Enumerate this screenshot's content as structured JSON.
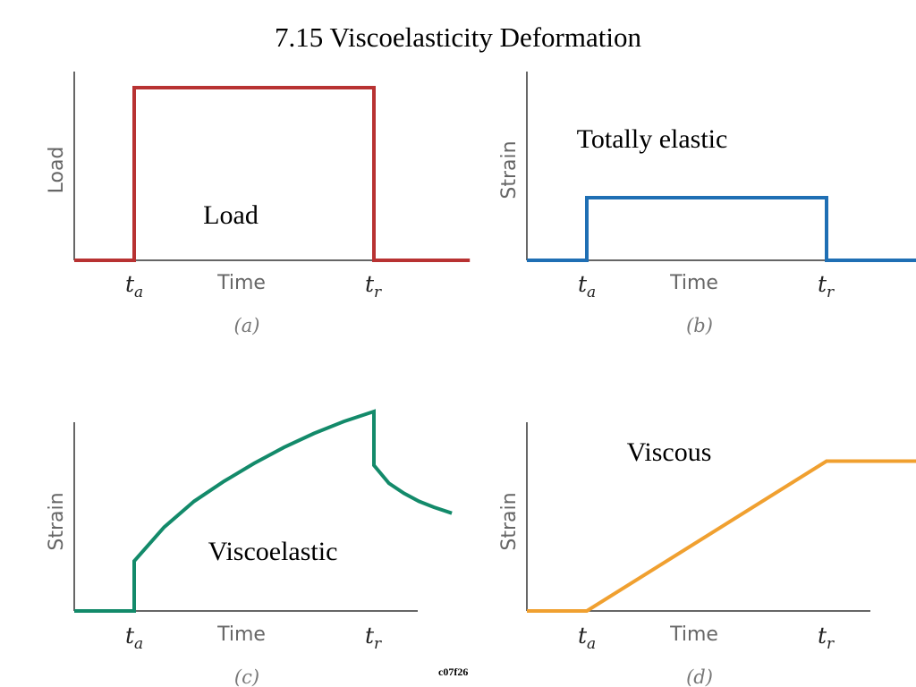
{
  "title": "7.15  Viscoelasticity Deformation",
  "caption": "c07f26",
  "chart_data": [
    {
      "type": "line",
      "panel_label": "(a)",
      "ylabel": "Load",
      "xlabel": "Time",
      "ticks": [
        {
          "main": "t",
          "sub": "a"
        },
        {
          "main": "t",
          "sub": "r"
        }
      ],
      "annotation": "Load",
      "color": "#b83232",
      "series": [
        {
          "x": [
            0,
            1,
            1,
            5,
            5,
            6.6
          ],
          "y": [
            0,
            0,
            1,
            1,
            0,
            0
          ]
        }
      ]
    },
    {
      "type": "line",
      "panel_label": "(b)",
      "ylabel": "Strain",
      "xlabel": "Time",
      "ticks": [
        {
          "main": "t",
          "sub": "a"
        },
        {
          "main": "t",
          "sub": "r"
        }
      ],
      "annotation": "Totally elastic",
      "color": "#1f6fb4",
      "series": [
        {
          "x": [
            0,
            1,
            1,
            5,
            5,
            6.6
          ],
          "y": [
            0,
            0,
            0.35,
            0.35,
            0,
            0
          ]
        }
      ]
    },
    {
      "type": "line",
      "panel_label": "(c)",
      "ylabel": "Strain",
      "xlabel": "Time",
      "ticks": [
        {
          "main": "t",
          "sub": "a"
        },
        {
          "main": "t",
          "sub": "r"
        }
      ],
      "annotation": "Viscoelastic",
      "color": "#138a6a",
      "series": [
        {
          "x": [
            0,
            1,
            1,
            1.5,
            2,
            2.5,
            3,
            3.5,
            4,
            4.5,
            5,
            5,
            5.25,
            5.5,
            5.75,
            6,
            6.3
          ],
          "y": [
            0,
            0,
            0.25,
            0.42,
            0.55,
            0.65,
            0.74,
            0.82,
            0.89,
            0.95,
            1.0,
            0.73,
            0.64,
            0.59,
            0.55,
            0.52,
            0.49
          ]
        }
      ]
    },
    {
      "type": "line",
      "panel_label": "(d)",
      "ylabel": "Strain",
      "xlabel": "Time",
      "ticks": [
        {
          "main": "t",
          "sub": "a"
        },
        {
          "main": "t",
          "sub": "r"
        }
      ],
      "annotation": "Viscous",
      "color": "#f0a030",
      "series": [
        {
          "x": [
            0,
            1,
            5,
            6.6
          ],
          "y": [
            0,
            0,
            0.85,
            0.85
          ]
        }
      ]
    }
  ]
}
